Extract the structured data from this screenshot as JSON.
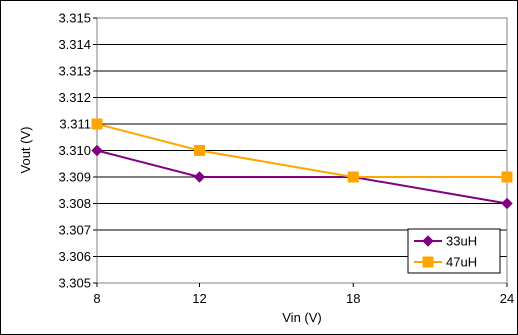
{
  "chart_data": {
    "type": "line",
    "title": "",
    "xlabel": "Vin (V)",
    "ylabel": "Vout (V)",
    "x": [
      8,
      12,
      18,
      24
    ],
    "x_tick_labels": [
      "8",
      "12",
      "18",
      "24"
    ],
    "ylim": [
      3.305,
      3.315
    ],
    "y_tick_labels": [
      "3.305",
      "3.306",
      "3.307",
      "3.308",
      "3.309",
      "3.310",
      "3.311",
      "3.312",
      "3.313",
      "3.314",
      "3.315"
    ],
    "grid": "horizontal",
    "legend_position": "bottom-right",
    "series": [
      {
        "name": "33uH",
        "values": [
          3.31,
          3.309,
          3.309,
          3.308
        ],
        "color": "#800080",
        "marker": "diamond"
      },
      {
        "name": "47uH",
        "values": [
          3.311,
          3.31,
          3.309,
          3.309
        ],
        "color": "#FFA500",
        "marker": "square"
      }
    ]
  }
}
